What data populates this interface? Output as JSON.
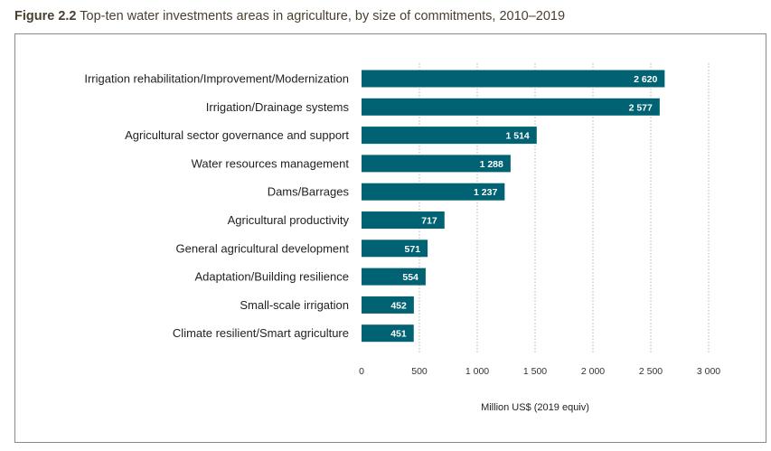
{
  "figure": {
    "number": "Figure 2.2",
    "caption": "Top-ten water investments areas in agriculture, by size of commitments, 2010–2019"
  },
  "chart_data": {
    "type": "bar",
    "orientation": "horizontal",
    "categories": [
      "Irrigation rehabilitation/Improvement/Modernization",
      "Irrigation/Drainage systems",
      "Agricultural sector governance and support",
      "Water resources management",
      "Dams/Barrages",
      "Agricultural productivity",
      "General agricultural development",
      "Adaptation/Building resilience",
      "Small-scale irrigation",
      "Climate resilient/Smart agriculture"
    ],
    "values": [
      2620,
      2577,
      1514,
      1288,
      1237,
      717,
      571,
      554,
      452,
      451
    ],
    "value_labels": [
      "2 620",
      "2 577",
      "1 514",
      "1 288",
      "1 237",
      "717",
      "571",
      "554",
      "452",
      "451"
    ],
    "xlabel": "Million US$ (2019 equiv)",
    "xlim": [
      0,
      3000
    ],
    "xticks": [
      0,
      500,
      1000,
      1500,
      2000,
      2500,
      3000
    ],
    "xtick_labels": [
      "0",
      "500",
      "1 000",
      "1 500",
      "2 000",
      "2 500",
      "3 000"
    ],
    "bar_color": "#006272",
    "grid": "vertical dotted"
  }
}
